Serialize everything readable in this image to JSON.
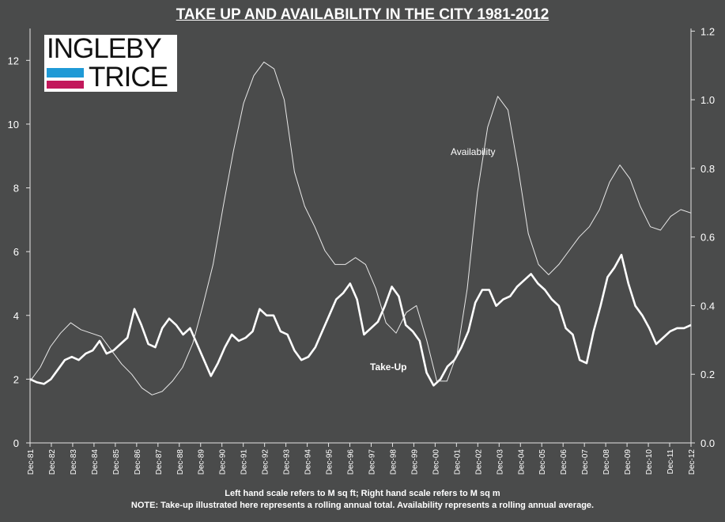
{
  "title": "TAKE UP AND AVAILABILITY IN THE CITY 1981-2012",
  "logo": {
    "line1": "INGLEBY",
    "line2": "TRICE",
    "colors": [
      "#1f9ad6",
      "#c2185b"
    ]
  },
  "footnotes": {
    "line1": "Left hand scale refers to M sq ft; Right hand scale refers to M sq m",
    "line2": "NOTE: Take-up illustrated here represents a rolling annual total. Availability represents a rolling annual average."
  },
  "chart_data": {
    "type": "line",
    "title": "TAKE UP AND AVAILABILITY IN THE CITY 1981-2012",
    "x": [
      "Dec-81",
      "Dec-82",
      "Dec-83",
      "Dec-84",
      "Dec-85",
      "Dec-86",
      "Dec-87",
      "Dec-88",
      "Dec-89",
      "Dec-90",
      "Dec-91",
      "Dec-92",
      "Dec-93",
      "Dec-94",
      "Dec-95",
      "Dec-96",
      "Dec-97",
      "Dec-98",
      "Dec-99",
      "Dec-00",
      "Dec-01",
      "Dec-02",
      "Dec-03",
      "Dec-04",
      "Dec-05",
      "Dec-06",
      "Dec-07",
      "Dec-08",
      "Dec-09",
      "Dec-10",
      "Dec-11",
      "Dec-12"
    ],
    "left_axis": {
      "ticks": [
        "0",
        "2",
        "4",
        "6",
        "8",
        "10",
        "12"
      ],
      "ylim": [
        0,
        13
      ]
    },
    "right_axis": {
      "ticks": [
        "0.0",
        "0.2",
        "0.4",
        "0.6",
        "0.8",
        "1.0",
        "1.2"
      ],
      "ylim": [
        0,
        1.2077
      ]
    },
    "grid": false,
    "series": [
      {
        "name": "Take-Up",
        "axis": "left",
        "color": "#ffffff",
        "points": [
          [
            0,
            2.0
          ],
          [
            0.5,
            1.9
          ],
          [
            1,
            1.85
          ],
          [
            1.5,
            2.0
          ],
          [
            2,
            2.3
          ],
          [
            2.5,
            2.6
          ],
          [
            3,
            2.7
          ],
          [
            3.5,
            2.6
          ],
          [
            4,
            2.8
          ],
          [
            4.5,
            2.9
          ],
          [
            5,
            3.2
          ],
          [
            5.5,
            2.8
          ],
          [
            6,
            2.9
          ],
          [
            6.5,
            3.1
          ],
          [
            7,
            3.3
          ],
          [
            7.5,
            4.2
          ],
          [
            8,
            3.7
          ],
          [
            8.5,
            3.1
          ],
          [
            9,
            3.0
          ],
          [
            9.5,
            3.6
          ],
          [
            10,
            3.9
          ],
          [
            10.5,
            3.7
          ],
          [
            11,
            3.4
          ],
          [
            11.5,
            3.6
          ],
          [
            12,
            3.1
          ],
          [
            12.5,
            2.6
          ],
          [
            13,
            2.1
          ],
          [
            13.5,
            2.5
          ],
          [
            14,
            3.0
          ],
          [
            14.5,
            3.4
          ],
          [
            15,
            3.2
          ],
          [
            15.5,
            3.3
          ],
          [
            16,
            3.5
          ],
          [
            16.5,
            4.2
          ],
          [
            17,
            4.0
          ],
          [
            17.5,
            4.0
          ],
          [
            18,
            3.5
          ],
          [
            18.5,
            3.4
          ],
          [
            19,
            2.9
          ],
          [
            19.5,
            2.6
          ],
          [
            20,
            2.7
          ],
          [
            20.5,
            3.0
          ],
          [
            21,
            3.5
          ],
          [
            21.5,
            4.0
          ],
          [
            22,
            4.5
          ],
          [
            22.5,
            4.7
          ],
          [
            23,
            5.0
          ],
          [
            23.5,
            4.5
          ],
          [
            24,
            3.4
          ],
          [
            24.5,
            3.6
          ],
          [
            25,
            3.8
          ],
          [
            25.5,
            4.3
          ],
          [
            26,
            4.9
          ],
          [
            26.5,
            4.6
          ],
          [
            27,
            3.7
          ],
          [
            27.5,
            3.5
          ],
          [
            28,
            3.2
          ],
          [
            28.5,
            2.2
          ],
          [
            29,
            1.8
          ],
          [
            29.5,
            2.0
          ],
          [
            30,
            2.4
          ],
          [
            30.5,
            2.6
          ],
          [
            31,
            3.0
          ],
          [
            31.5,
            3.5
          ],
          [
            32,
            4.4
          ],
          [
            32.5,
            4.8
          ],
          [
            33,
            4.8
          ],
          [
            33.5,
            4.3
          ],
          [
            34,
            4.5
          ],
          [
            34.5,
            4.6
          ],
          [
            35,
            4.9
          ],
          [
            35.5,
            5.1
          ],
          [
            36,
            5.3
          ],
          [
            36.5,
            5.0
          ],
          [
            37,
            4.8
          ],
          [
            37.5,
            4.5
          ],
          [
            38,
            4.3
          ],
          [
            38.5,
            3.6
          ],
          [
            39,
            3.4
          ],
          [
            39.5,
            2.6
          ],
          [
            40,
            2.5
          ],
          [
            40.5,
            3.5
          ],
          [
            41,
            4.3
          ],
          [
            41.5,
            5.2
          ],
          [
            42,
            5.5
          ],
          [
            42.5,
            5.9
          ],
          [
            43,
            5.0
          ],
          [
            43.5,
            4.3
          ],
          [
            44,
            4.0
          ],
          [
            44.5,
            3.6
          ],
          [
            45,
            3.1
          ],
          [
            45.5,
            3.3
          ],
          [
            46,
            3.5
          ],
          [
            46.5,
            3.6
          ],
          [
            47,
            3.6
          ],
          [
            47.5,
            3.7
          ]
        ]
      },
      {
        "name": "Availability",
        "axis": "right",
        "color": "#e8e8e8",
        "points": [
          [
            0,
            0.18
          ],
          [
            1,
            0.22
          ],
          [
            2,
            0.28
          ],
          [
            3,
            0.32
          ],
          [
            4,
            0.35
          ],
          [
            5,
            0.33
          ],
          [
            6,
            0.32
          ],
          [
            7,
            0.31
          ],
          [
            8,
            0.27
          ],
          [
            9,
            0.23
          ],
          [
            10,
            0.2
          ],
          [
            11,
            0.16
          ],
          [
            12,
            0.14
          ],
          [
            13,
            0.15
          ],
          [
            14,
            0.18
          ],
          [
            15,
            0.22
          ],
          [
            16,
            0.29
          ],
          [
            17,
            0.4
          ],
          [
            18,
            0.52
          ],
          [
            19,
            0.69
          ],
          [
            20,
            0.85
          ],
          [
            21,
            0.99
          ],
          [
            22,
            1.07
          ],
          [
            23,
            1.11
          ],
          [
            24,
            1.09
          ],
          [
            25,
            1.0
          ],
          [
            26,
            0.79
          ],
          [
            27,
            0.69
          ],
          [
            28,
            0.63
          ],
          [
            29,
            0.56
          ],
          [
            30,
            0.52
          ],
          [
            31,
            0.52
          ],
          [
            32,
            0.54
          ],
          [
            33,
            0.52
          ],
          [
            34,
            0.45
          ],
          [
            35,
            0.35
          ],
          [
            36,
            0.32
          ],
          [
            37,
            0.38
          ],
          [
            38,
            0.4
          ],
          [
            39,
            0.3
          ],
          [
            40,
            0.18
          ],
          [
            41,
            0.18
          ],
          [
            42,
            0.26
          ],
          [
            43,
            0.45
          ],
          [
            44,
            0.73
          ],
          [
            45,
            0.92
          ],
          [
            46,
            1.01
          ],
          [
            47,
            0.97
          ],
          [
            48,
            0.8
          ],
          [
            49,
            0.61
          ],
          [
            50,
            0.52
          ],
          [
            51,
            0.49
          ],
          [
            52,
            0.52
          ],
          [
            53,
            0.56
          ],
          [
            54,
            0.6
          ],
          [
            55,
            0.63
          ],
          [
            56,
            0.68
          ],
          [
            57,
            0.76
          ],
          [
            58,
            0.81
          ],
          [
            59,
            0.77
          ],
          [
            60,
            0.69
          ],
          [
            61,
            0.63
          ],
          [
            62,
            0.62
          ],
          [
            63,
            0.66
          ],
          [
            64,
            0.68
          ],
          [
            65,
            0.67
          ]
        ]
      }
    ],
    "annotations": [
      {
        "text": "Availability",
        "series": "Availability"
      },
      {
        "text": "Take-Up",
        "series": "Take-Up"
      }
    ]
  }
}
